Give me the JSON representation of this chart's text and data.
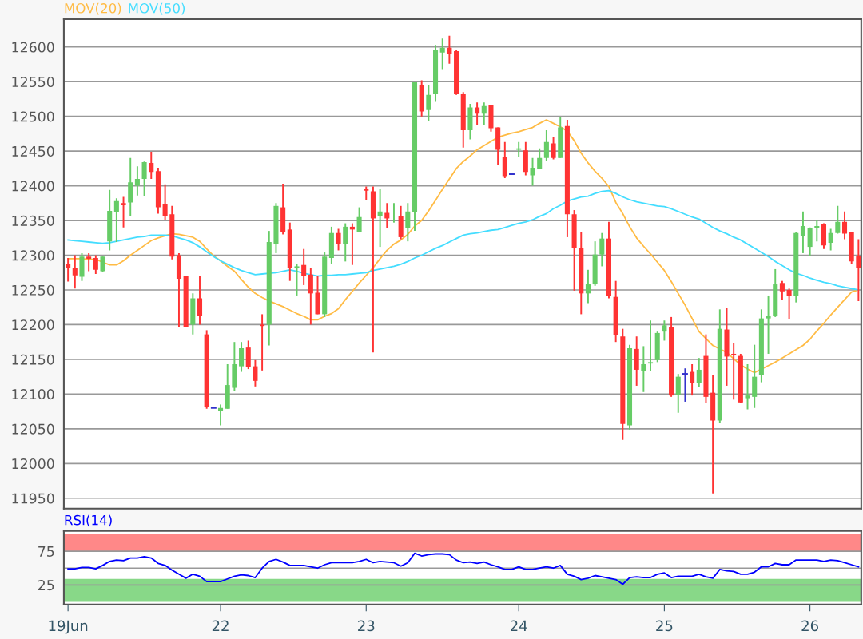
{
  "chart_data": [
    {
      "type": "candlestick",
      "categories": [
        null,
        null,
        null,
        null,
        null,
        null,
        null,
        null,
        null,
        null,
        null,
        null,
        null,
        null,
        null,
        null,
        null,
        null,
        null,
        null,
        null,
        null,
        null,
        null,
        null,
        null,
        null,
        null,
        null,
        null,
        null,
        null,
        null,
        null,
        null,
        null,
        null,
        null,
        null,
        null,
        null,
        null,
        null,
        null,
        null,
        null,
        null,
        null,
        null,
        null,
        null,
        null,
        null,
        null,
        null,
        null,
        null,
        null,
        null,
        null,
        null,
        null,
        null,
        null,
        null,
        null,
        null,
        null,
        null,
        null,
        null,
        null,
        null,
        null,
        null,
        null,
        null,
        null,
        null,
        null,
        null,
        null,
        null,
        null,
        null,
        null,
        null,
        null,
        null,
        null,
        null,
        null,
        null,
        null,
        null,
        null,
        null,
        null,
        null,
        null,
        null,
        null,
        null,
        null,
        null,
        null,
        null,
        null,
        null,
        null,
        null,
        null,
        null,
        null,
        null
      ],
      "ohlc": [
        [
          12288,
          12296,
          12262,
          12282
        ],
        [
          12282,
          12300,
          12252,
          12271
        ],
        [
          12269,
          12303,
          12263,
          12298
        ],
        [
          12298,
          12303,
          12277,
          12295
        ],
        [
          12296,
          12300,
          12273,
          12279
        ],
        [
          12277,
          12298,
          12276,
          12298
        ],
        [
          12320,
          12394,
          12307,
          12364
        ],
        [
          12362,
          12382,
          12319,
          12378
        ],
        [
          12375,
          12384,
          12340,
          12372
        ],
        [
          12376,
          12440,
          12357,
          12405
        ],
        [
          12400,
          12428,
          12386,
          12410
        ],
        [
          12410,
          12435,
          12385,
          12434
        ],
        [
          12433,
          12449,
          12410,
          12420
        ],
        [
          12421,
          12426,
          12360,
          12369
        ],
        [
          12373,
          12402,
          12350,
          12356
        ],
        [
          12359,
          12371,
          12294,
          12298
        ],
        [
          12300,
          12303,
          12197,
          12266
        ],
        [
          12270,
          12270,
          12197,
          12197
        ],
        [
          12200,
          12245,
          12186,
          12238
        ],
        [
          12238,
          12270,
          12200,
          12212
        ],
        [
          12186,
          12192,
          12079,
          12082
        ],
        [
          12080,
          12080,
          12080,
          12080
        ],
        [
          12075,
          12085,
          12055,
          12080
        ],
        [
          12079,
          12143,
          12079,
          12113
        ],
        [
          12109,
          12175,
          12105,
          12143
        ],
        [
          12140,
          12175,
          12132,
          12166
        ],
        [
          12167,
          12177,
          12136,
          12139
        ],
        [
          12140,
          12149,
          12111,
          12119
        ],
        [
          12200,
          12215,
          12134,
          12198
        ],
        [
          12200,
          12335,
          12170,
          12319
        ],
        [
          12316,
          12375,
          12303,
          12371
        ],
        [
          12369,
          12403,
          12330,
          12334
        ],
        [
          12337,
          12347,
          12263,
          12282
        ],
        [
          12281,
          12288,
          12242,
          12284
        ],
        [
          12286,
          12309,
          12257,
          12270
        ],
        [
          12272,
          12282,
          12200,
          12245
        ],
        [
          12246,
          12270,
          12215,
          12215
        ],
        [
          12215,
          12304,
          12211,
          12298
        ],
        [
          12296,
          12341,
          12288,
          12332
        ],
        [
          12332,
          12338,
          12307,
          12316
        ],
        [
          12316,
          12346,
          12291,
          12341
        ],
        [
          12341,
          12346,
          12286,
          12337
        ],
        [
          12333,
          12369,
          12333,
          12355
        ],
        [
          12396,
          12399,
          12379,
          12393
        ],
        [
          12392,
          12399,
          12160,
          12353
        ],
        [
          12356,
          12396,
          12312,
          12363
        ],
        [
          12361,
          12375,
          12339,
          12353
        ],
        [
          12356,
          12375,
          12347,
          12357
        ],
        [
          12357,
          12371,
          12323,
          12326
        ],
        [
          12339,
          12375,
          12320,
          12363
        ],
        [
          12362,
          12549,
          12335,
          12549
        ],
        [
          12545,
          12552,
          12500,
          12507
        ],
        [
          12509,
          12545,
          12494,
          12531
        ],
        [
          12532,
          12603,
          12521,
          12596
        ],
        [
          12592,
          12612,
          12567,
          12599
        ],
        [
          12599,
          12616,
          12576,
          12590
        ],
        [
          12594,
          12595,
          12531,
          12532
        ],
        [
          12532,
          12535,
          12455,
          12480
        ],
        [
          12480,
          12518,
          12467,
          12513
        ],
        [
          12513,
          12520,
          12488,
          12504
        ],
        [
          12504,
          12520,
          12488,
          12515
        ],
        [
          12517,
          12517,
          12478,
          12483
        ],
        [
          12484,
          12484,
          12430,
          12452
        ],
        [
          12442,
          12463,
          12411,
          12414
        ],
        [
          12417,
          12417,
          12417,
          12417
        ],
        [
          12452,
          12463,
          12442,
          12454
        ],
        [
          12451,
          12463,
          12415,
          12420
        ],
        [
          12415,
          12440,
          12400,
          12426
        ],
        [
          12425,
          12454,
          12424,
          12440
        ],
        [
          12440,
          12480,
          12436,
          12463
        ],
        [
          12461,
          12470,
          12438,
          12440
        ],
        [
          12440,
          12499,
          12440,
          12484
        ],
        [
          12486,
          12495,
          12326,
          12359
        ],
        [
          12359,
          12365,
          12249,
          12310
        ],
        [
          12311,
          12334,
          12215,
          12245
        ],
        [
          12245,
          12279,
          12231,
          12258
        ],
        [
          12258,
          12320,
          12256,
          12301
        ],
        [
          12301,
          12332,
          12284,
          12324
        ],
        [
          12324,
          12348,
          12238,
          12241
        ],
        [
          12240,
          12263,
          12175,
          12185
        ],
        [
          12183,
          12194,
          12034,
          12057
        ],
        [
          12055,
          12171,
          12049,
          12166
        ],
        [
          12165,
          12183,
          12112,
          12135
        ],
        [
          12133,
          12169,
          12103,
          12143
        ],
        [
          12144,
          12206,
          12133,
          12146
        ],
        [
          12149,
          12190,
          12146,
          12188
        ],
        [
          12190,
          12206,
          12177,
          12199
        ],
        [
          12196,
          12211,
          12096,
          12098
        ],
        [
          12099,
          12129,
          12073,
          12125
        ],
        [
          12129,
          12137,
          12089,
          12129
        ],
        [
          12132,
          12143,
          12098,
          12116
        ],
        [
          12116,
          12152,
          12110,
          12135
        ],
        [
          12155,
          12186,
          12087,
          12096
        ],
        [
          12102,
          12127,
          11957,
          12062
        ],
        [
          12062,
          12222,
          12058,
          12194
        ],
        [
          12193,
          12224,
          12112,
          12154
        ],
        [
          12158,
          12173,
          12092,
          12156
        ],
        [
          12155,
          12158,
          12087,
          12088
        ],
        [
          12094,
          12143,
          12078,
          12098
        ],
        [
          12096,
          12171,
          12080,
          12125
        ],
        [
          12127,
          12222,
          12117,
          12209
        ],
        [
          12209,
          12242,
          12158,
          12212
        ],
        [
          12213,
          12280,
          12211,
          12258
        ],
        [
          12260,
          12263,
          12236,
          12248
        ],
        [
          12250,
          12252,
          12208,
          12241
        ],
        [
          12241,
          12334,
          12232,
          12332
        ],
        [
          12328,
          12363,
          12303,
          12342
        ],
        [
          12312,
          12340,
          12299,
          12339
        ],
        [
          12339,
          12351,
          12320,
          12342
        ],
        [
          12345,
          12346,
          12309,
          12314
        ],
        [
          12318,
          12338,
          12307,
          12332
        ],
        [
          12332,
          12371,
          12331,
          12348
        ],
        [
          12348,
          12363,
          12323,
          12331
        ],
        [
          12334,
          12334,
          12287,
          12291
        ],
        [
          12299,
          12323,
          12234,
          12282
        ]
      ],
      "colors": [
        "#ff3333",
        "#ff3333",
        "#66cc66",
        "#ff3333",
        "#ff3333",
        "#66cc66",
        "#66cc66",
        "#66cc66",
        "#ff3333",
        "#66cc66",
        "#66cc66",
        "#66cc66",
        "#ff3333",
        "#ff3333",
        "#ff3333",
        "#ff3333",
        "#ff3333",
        "#ff3333",
        "#66cc66",
        "#ff3333",
        "#ff3333",
        "#3333cc",
        "#66cc66",
        "#66cc66",
        "#66cc66",
        "#66cc66",
        "#ff3333",
        "#ff3333",
        "#ff3333",
        "#66cc66",
        "#66cc66",
        "#ff3333",
        "#ff3333",
        "#66cc66",
        "#ff3333",
        "#ff3333",
        "#ff3333",
        "#66cc66",
        "#66cc66",
        "#ff3333",
        "#66cc66",
        "#ff3333",
        "#66cc66",
        "#ff3333",
        "#ff3333",
        "#66cc66",
        "#ff3333",
        "#66cc66",
        "#ff3333",
        "#66cc66",
        "#66cc66",
        "#ff3333",
        "#66cc66",
        "#66cc66",
        "#66cc66",
        "#ff3333",
        "#ff3333",
        "#ff3333",
        "#66cc66",
        "#ff3333",
        "#66cc66",
        "#ff3333",
        "#ff3333",
        "#ff3333",
        "#3333cc",
        "#66cc66",
        "#ff3333",
        "#66cc66",
        "#66cc66",
        "#66cc66",
        "#ff3333",
        "#66cc66",
        "#ff3333",
        "#ff3333",
        "#ff3333",
        "#66cc66",
        "#66cc66",
        "#66cc66",
        "#ff3333",
        "#ff3333",
        "#ff3333",
        "#66cc66",
        "#ff3333",
        "#66cc66",
        "#66cc66",
        "#66cc66",
        "#66cc66",
        "#ff3333",
        "#66cc66",
        "#3333cc",
        "#ff3333",
        "#66cc66",
        "#ff3333",
        "#ff3333",
        "#66cc66",
        "#ff3333",
        "#ff3333",
        "#ff3333",
        "#66cc66",
        "#66cc66",
        "#66cc66",
        "#66cc66",
        "#66cc66",
        "#ff3333",
        "#ff3333",
        "#66cc66",
        "#66cc66",
        "#66cc66",
        "#66cc66",
        "#ff3333",
        "#66cc66",
        "#66cc66",
        "#ff3333",
        "#ff3333",
        "#ff3333"
      ],
      "series": [
        {
          "name": "MOV(20)",
          "type": "line",
          "color": "#ffbb44",
          "values": [
            12295,
            12295,
            12295,
            12294,
            12294,
            12290,
            12286,
            12286,
            12292,
            12300,
            12307,
            12314,
            12321,
            12325,
            12328,
            12331,
            12330,
            12328,
            12326,
            12320,
            12309,
            12299,
            12292,
            12284,
            12277,
            12265,
            12254,
            12245,
            12239,
            12234,
            12230,
            12226,
            12221,
            12216,
            12212,
            12207,
            12207,
            12212,
            12216,
            12223,
            12236,
            12248,
            12260,
            12271,
            12282,
            12295,
            12307,
            12316,
            12322,
            12330,
            12342,
            12350,
            12364,
            12379,
            12395,
            12410,
            12425,
            12435,
            12443,
            12452,
            12458,
            12464,
            12470,
            12473,
            12476,
            12478,
            12481,
            12484,
            12490,
            12495,
            12490,
            12485,
            12479,
            12465,
            12447,
            12433,
            12421,
            12411,
            12399,
            12376,
            12360,
            12341,
            12325,
            12313,
            12302,
            12290,
            12278,
            12262,
            12245,
            12228,
            12209,
            12190,
            12180,
            12170,
            12165,
            12160,
            12151,
            12142,
            12136,
            12131,
            12136,
            12141,
            12146,
            12152,
            12158,
            12164,
            12170,
            12179,
            12191,
            12202,
            12214,
            12225,
            12236,
            12247,
            12250
          ]
        },
        {
          "name": "MOV(50)",
          "type": "line",
          "color": "#44ddff",
          "values": [
            12322,
            12321,
            12320,
            12319,
            12318,
            12317,
            12318,
            12320,
            12322,
            12324,
            12326,
            12327,
            12329,
            12329,
            12329,
            12328,
            12325,
            12322,
            12318,
            12312,
            12305,
            12298,
            12292,
            12287,
            12282,
            12278,
            12275,
            12272,
            12273,
            12274,
            12275,
            12277,
            12279,
            12277,
            12274,
            12272,
            12270,
            12271,
            12271,
            12272,
            12272,
            12273,
            12274,
            12275,
            12278,
            12280,
            12282,
            12284,
            12287,
            12291,
            12296,
            12300,
            12305,
            12310,
            12314,
            12319,
            12324,
            12329,
            12331,
            12332,
            12334,
            12336,
            12337,
            12340,
            12343,
            12346,
            12348,
            12351,
            12356,
            12360,
            12367,
            12372,
            12378,
            12381,
            12384,
            12385,
            12389,
            12392,
            12393,
            12389,
            12384,
            12380,
            12377,
            12375,
            12373,
            12371,
            12370,
            12367,
            12363,
            12359,
            12355,
            12352,
            12346,
            12340,
            12335,
            12331,
            12326,
            12322,
            12316,
            12310,
            12304,
            12298,
            12291,
            12285,
            12279,
            12274,
            12271,
            12267,
            12264,
            12261,
            12259,
            12256,
            12254,
            12252,
            12250
          ]
        }
      ],
      "ylim": [
        11935,
        12640
      ],
      "yticks": [
        11950,
        12000,
        12050,
        12100,
        12150,
        12200,
        12250,
        12300,
        12350,
        12400,
        12450,
        12500,
        12550,
        12600
      ],
      "grid": "y",
      "legend": "top left"
    },
    {
      "type": "line",
      "categories": [
        "19Jun",
        null,
        null,
        null,
        null,
        null,
        null,
        null,
        null,
        null,
        null,
        null,
        null,
        null,
        null,
        null,
        null,
        null,
        null,
        null,
        null,
        null,
        "22",
        null,
        null,
        null,
        null,
        null,
        null,
        null,
        null,
        null,
        null,
        null,
        null,
        null,
        null,
        null,
        null,
        null,
        null,
        null,
        null,
        "23",
        null,
        null,
        null,
        null,
        null,
        null,
        null,
        null,
        null,
        null,
        null,
        null,
        null,
        null,
        null,
        null,
        null,
        null,
        null,
        null,
        null,
        "24",
        null,
        null,
        null,
        null,
        null,
        null,
        null,
        null,
        null,
        null,
        null,
        null,
        null,
        null,
        null,
        null,
        null,
        null,
        null,
        null,
        "25",
        null,
        null,
        null,
        null,
        null,
        null,
        null,
        null,
        null,
        null,
        null,
        null,
        null,
        null,
        null,
        null,
        null,
        null,
        null,
        null,
        "26",
        null,
        null,
        null,
        null,
        null,
        null,
        null
      ],
      "series": [
        {
          "name": "RSI(14)",
          "color": "#0000ff",
          "values": [
            49,
            49,
            51,
            51,
            49,
            54,
            60,
            62,
            61,
            65,
            65,
            67,
            65,
            57,
            54,
            47,
            41,
            35,
            41,
            38,
            30,
            30,
            30,
            34,
            38,
            40,
            39,
            36,
            50,
            60,
            63,
            59,
            54,
            54,
            54,
            52,
            50,
            55,
            58,
            58,
            58,
            58,
            60,
            63,
            58,
            60,
            59,
            58,
            53,
            58,
            72,
            68,
            70,
            71,
            71,
            70,
            62,
            58,
            59,
            57,
            59,
            55,
            52,
            48,
            48,
            52,
            48,
            48,
            50,
            52,
            50,
            54,
            41,
            38,
            33,
            35,
            39,
            37,
            35,
            33,
            26,
            36,
            37,
            36,
            36,
            41,
            43,
            36,
            38,
            38,
            38,
            41,
            37,
            35,
            48,
            46,
            45,
            41,
            41,
            44,
            52,
            52,
            57,
            55,
            55,
            62,
            62,
            62,
            62,
            60,
            62,
            61,
            58,
            55,
            52
          ]
        }
      ],
      "ylim": [
        -4,
        105
      ],
      "yticks": [
        25,
        75
      ],
      "bands": [
        {
          "axis": "y",
          "from": 75,
          "to": 100,
          "color": "#ff8888"
        },
        {
          "axis": "y",
          "from": 0,
          "to": 34,
          "color": "#88d888"
        }
      ],
      "ref_lines": [
        {
          "axis": "y",
          "value": 50,
          "color": "#999999"
        }
      ],
      "grid": "y",
      "legend": "top left"
    }
  ]
}
